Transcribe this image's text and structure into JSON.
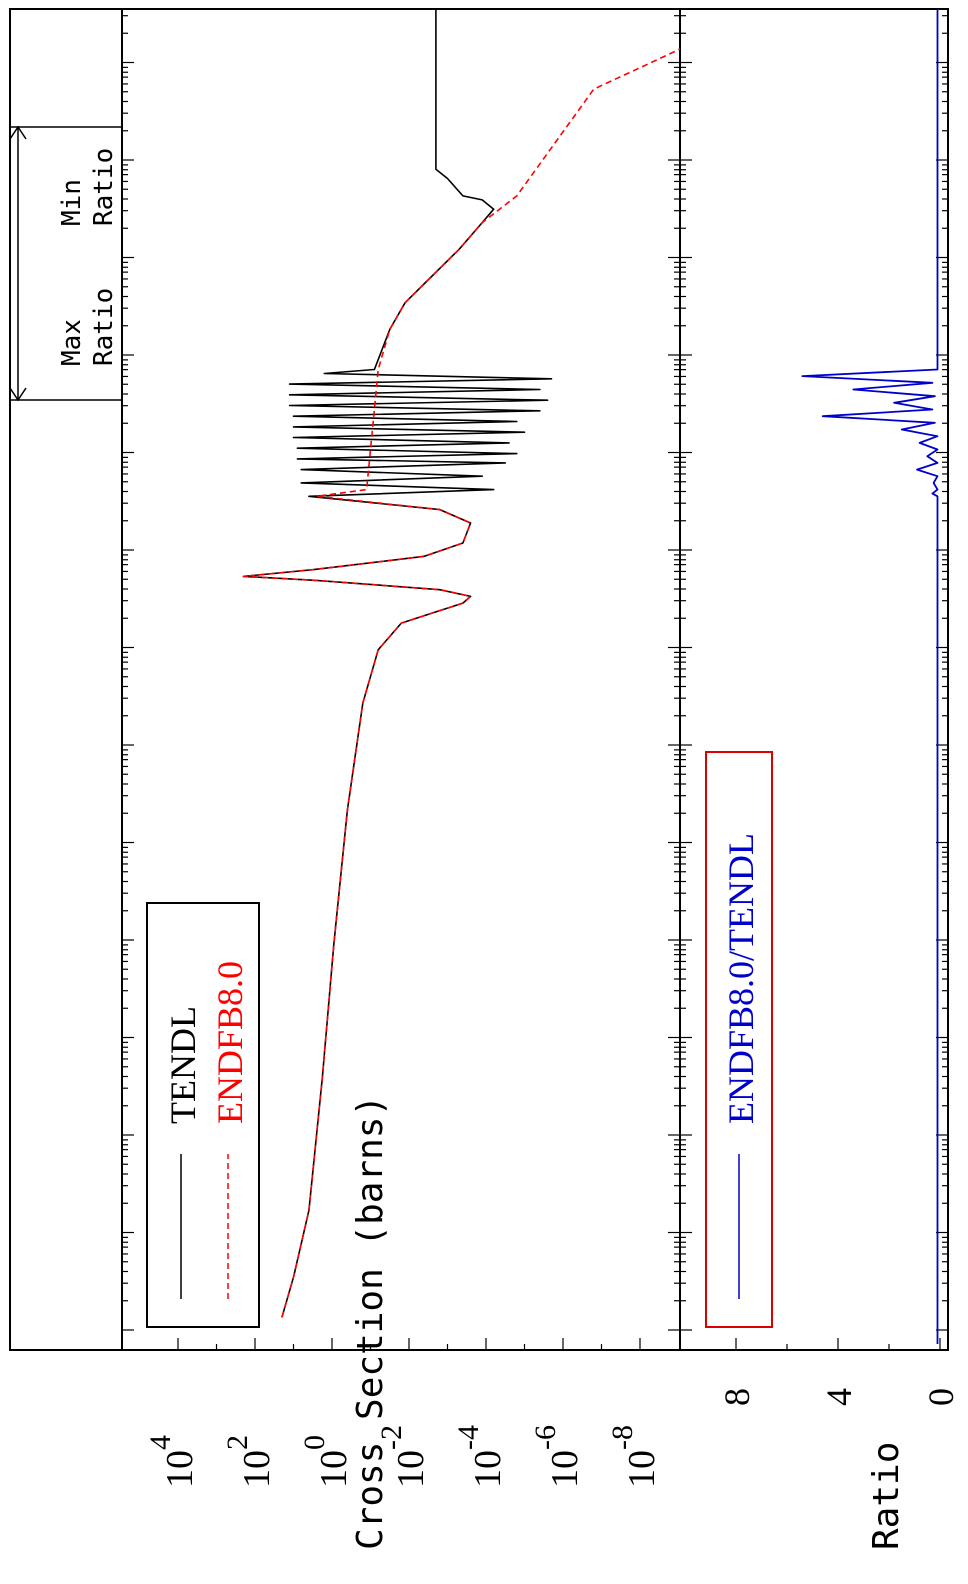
{
  "chart_data": [
    {
      "type": "line",
      "panel": "cross-section",
      "ylabel": "Cross Section (barns)",
      "yscale": "log",
      "ylim": [
        1e-10,
        1000000.0
      ],
      "y_ticks": [
        {
          "base": "10",
          "exp": "4",
          "value": 4
        },
        {
          "base": "10",
          "exp": "2",
          "value": 2
        },
        {
          "base": "10",
          "exp": "0",
          "value": 0
        },
        {
          "base": "10",
          "exp": "-2",
          "value": -2
        },
        {
          "base": "10",
          "exp": "-4",
          "value": -4
        },
        {
          "base": "10",
          "exp": "-6",
          "value": -6
        },
        {
          "base": "10",
          "exp": "-8",
          "value": -8
        }
      ],
      "legend": {
        "position": "top-left",
        "border_color": "#000000"
      },
      "arrow_labels": {
        "max": [
          "Max",
          "Ratio"
        ],
        "min": [
          "Min",
          "Ratio"
        ]
      },
      "series": [
        {
          "name": "TENDL",
          "color": "#000000",
          "dash": "solid",
          "points": [
            [
              0.02,
              1.3
            ],
            [
              0.05,
              1.0
            ],
            [
              0.1,
              0.6
            ],
            [
              0.2,
              0.25
            ],
            [
              0.3,
              -0.05
            ],
            [
              0.4,
              -0.4
            ],
            [
              0.48,
              -0.8
            ],
            [
              0.52,
              -1.2
            ],
            [
              0.54,
              -1.8
            ],
            [
              0.555,
              -3.4
            ],
            [
              0.56,
              -3.6
            ],
            [
              0.565,
              -2.8
            ],
            [
              0.572,
              0.4
            ],
            [
              0.575,
              2.3
            ],
            [
              0.58,
              0.5
            ],
            [
              0.59,
              -2.4
            ],
            [
              0.6,
              -3.4
            ],
            [
              0.615,
              -3.6
            ],
            [
              0.625,
              -2.8
            ],
            [
              0.635,
              0.6
            ],
            [
              0.64,
              -4.2
            ],
            [
              0.645,
              0.8
            ],
            [
              0.65,
              -3.9
            ],
            [
              0.655,
              0.8
            ],
            [
              0.66,
              -4.5
            ],
            [
              0.663,
              0.9
            ],
            [
              0.667,
              -4.8
            ],
            [
              0.671,
              0.9
            ],
            [
              0.675,
              -4.6
            ],
            [
              0.679,
              1.0
            ],
            [
              0.683,
              -5.0
            ],
            [
              0.687,
              1.0
            ],
            [
              0.691,
              -4.8
            ],
            [
              0.695,
              1.0
            ],
            [
              0.699,
              -5.4
            ],
            [
              0.703,
              1.1
            ],
            [
              0.707,
              -5.6
            ],
            [
              0.711,
              1.1
            ],
            [
              0.715,
              -5.4
            ],
            [
              0.719,
              1.1
            ],
            [
              0.723,
              -5.7
            ],
            [
              0.727,
              0.2
            ],
            [
              0.73,
              -1.1
            ],
            [
              0.76,
              -1.5
            ],
            [
              0.78,
              -1.9
            ],
            [
              0.8,
              -2.6
            ],
            [
              0.82,
              -3.3
            ],
            [
              0.84,
              -3.9
            ],
            [
              0.85,
              -4.2
            ],
            [
              0.857,
              -3.9
            ],
            [
              0.86,
              -3.4
            ],
            [
              0.873,
              -3.0
            ],
            [
              0.88,
              -2.7
            ],
            [
              1.0,
              -2.7
            ]
          ]
        },
        {
          "name": "ENDFB8.0",
          "color": "#ff0000",
          "dash": "dashed",
          "points": [
            [
              0.02,
              1.3
            ],
            [
              0.05,
              1.0
            ],
            [
              0.1,
              0.6
            ],
            [
              0.2,
              0.25
            ],
            [
              0.3,
              -0.05
            ],
            [
              0.4,
              -0.4
            ],
            [
              0.48,
              -0.8
            ],
            [
              0.52,
              -1.2
            ],
            [
              0.54,
              -1.8
            ],
            [
              0.555,
              -3.4
            ],
            [
              0.56,
              -3.6
            ],
            [
              0.565,
              -2.8
            ],
            [
              0.572,
              0.4
            ],
            [
              0.575,
              2.3
            ],
            [
              0.58,
              0.5
            ],
            [
              0.59,
              -2.4
            ],
            [
              0.6,
              -3.4
            ],
            [
              0.615,
              -3.6
            ],
            [
              0.625,
              -2.8
            ],
            [
              0.635,
              0.4
            ],
            [
              0.64,
              -0.9
            ],
            [
              0.7,
              -1.1
            ],
            [
              0.73,
              -1.2
            ],
            [
              0.76,
              -1.5
            ],
            [
              0.78,
              -1.9
            ],
            [
              0.8,
              -2.6
            ],
            [
              0.82,
              -3.3
            ],
            [
              0.84,
              -3.9
            ],
            [
              0.86,
              -4.8
            ],
            [
              0.9,
              -5.8
            ],
            [
              0.94,
              -6.8
            ],
            [
              0.96,
              -8.3
            ],
            [
              0.97,
              -10.0
            ]
          ]
        }
      ]
    },
    {
      "type": "line",
      "panel": "ratio",
      "ylabel": "Ratio",
      "ylim": [
        0,
        10
      ],
      "y_ticks": [
        "8",
        "4",
        "0"
      ],
      "legend": {
        "position": "top-left",
        "border_color": "#dd0000"
      },
      "series": [
        {
          "name": "ENDFB8.0/TENDL",
          "color": "#0000cc",
          "dash": "solid",
          "points": [
            [
              0.0,
              0.1
            ],
            [
              0.635,
              0.1
            ],
            [
              0.637,
              0.3
            ],
            [
              0.64,
              0.1
            ],
            [
              0.645,
              0.25
            ],
            [
              0.65,
              0.1
            ],
            [
              0.655,
              0.9
            ],
            [
              0.66,
              0.1
            ],
            [
              0.665,
              0.5
            ],
            [
              0.67,
              0.1
            ],
            [
              0.675,
              0.8
            ],
            [
              0.68,
              0.1
            ],
            [
              0.685,
              1.5
            ],
            [
              0.69,
              0.2
            ],
            [
              0.695,
              4.6
            ],
            [
              0.7,
              0.3
            ],
            [
              0.705,
              1.8
            ],
            [
              0.71,
              0.2
            ],
            [
              0.715,
              3.4
            ],
            [
              0.72,
              0.3
            ],
            [
              0.725,
              5.4
            ],
            [
              0.73,
              0.1
            ],
            [
              1.0,
              0.1
            ]
          ]
        }
      ]
    }
  ]
}
